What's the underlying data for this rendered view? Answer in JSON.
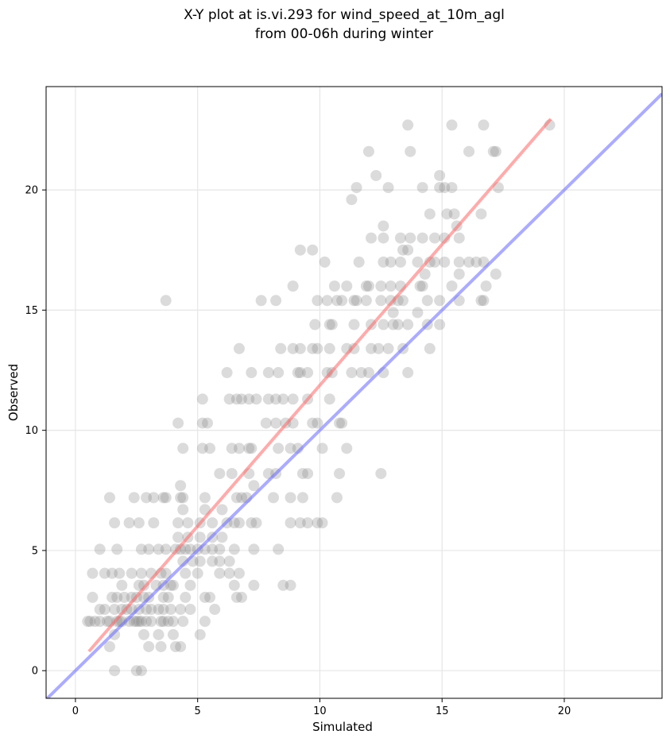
{
  "chart_data": {
    "type": "scatter",
    "title_line1": "X-Y plot at is.vi.293 for wind_speed_at_10m_agl",
    "title_line2": "from 00-06h during winter",
    "xlabel": "Simulated",
    "ylabel": "Observed",
    "xlim": [
      -1.2,
      24.0
    ],
    "ylim": [
      -1.15,
      24.3
    ],
    "xticks": [
      0,
      5,
      10,
      15,
      20
    ],
    "yticks": [
      0,
      5,
      10,
      15,
      20
    ],
    "grid": true,
    "colors": {
      "points": "#7f7f7f",
      "fit_line": "#ff6666",
      "identity_line": "#6666ff",
      "grid": "#e6e6e6"
    },
    "fit_line": {
      "x": [
        0.55,
        19.45
      ],
      "y": [
        0.8,
        22.95
      ]
    },
    "identity_line": {
      "x": [
        -1.2,
        24.0
      ],
      "y": [
        -1.2,
        24.0
      ]
    },
    "points": [
      [
        1.6,
        0.0
      ],
      [
        2.5,
        0.0
      ],
      [
        2.7,
        0.0
      ],
      [
        1.4,
        1.0
      ],
      [
        3.0,
        1.0
      ],
      [
        3.5,
        1.0
      ],
      [
        4.3,
        1.0
      ],
      [
        4.1,
        1.0
      ],
      [
        1.6,
        1.5
      ],
      [
        2.8,
        1.5
      ],
      [
        3.4,
        1.5
      ],
      [
        4.0,
        1.5
      ],
      [
        5.1,
        1.5
      ],
      [
        0.5,
        2.05
      ],
      [
        0.6,
        2.05
      ],
      [
        0.8,
        2.05
      ],
      [
        1.0,
        2.05
      ],
      [
        1.3,
        2.05
      ],
      [
        1.4,
        2.05
      ],
      [
        1.7,
        2.05
      ],
      [
        1.8,
        2.05
      ],
      [
        1.9,
        2.05
      ],
      [
        2.2,
        2.05
      ],
      [
        2.4,
        2.05
      ],
      [
        2.5,
        2.05
      ],
      [
        2.6,
        2.05
      ],
      [
        2.7,
        2.05
      ],
      [
        2.9,
        2.05
      ],
      [
        3.1,
        2.05
      ],
      [
        3.5,
        2.05
      ],
      [
        3.6,
        2.05
      ],
      [
        3.8,
        2.05
      ],
      [
        4.0,
        2.05
      ],
      [
        4.4,
        2.05
      ],
      [
        5.3,
        2.05
      ],
      [
        1.0,
        2.55
      ],
      [
        1.2,
        2.55
      ],
      [
        1.6,
        2.55
      ],
      [
        1.9,
        2.55
      ],
      [
        2.1,
        2.55
      ],
      [
        2.3,
        2.55
      ],
      [
        2.6,
        2.55
      ],
      [
        2.9,
        2.55
      ],
      [
        3.1,
        2.55
      ],
      [
        3.4,
        2.55
      ],
      [
        3.6,
        2.55
      ],
      [
        3.9,
        2.55
      ],
      [
        4.3,
        2.55
      ],
      [
        4.7,
        2.55
      ],
      [
        5.7,
        2.55
      ],
      [
        0.7,
        3.05
      ],
      [
        1.5,
        3.05
      ],
      [
        1.7,
        3.05
      ],
      [
        2.0,
        3.05
      ],
      [
        2.3,
        3.05
      ],
      [
        2.5,
        3.05
      ],
      [
        2.8,
        3.05
      ],
      [
        3.0,
        3.05
      ],
      [
        3.6,
        3.05
      ],
      [
        3.8,
        3.05
      ],
      [
        4.5,
        3.05
      ],
      [
        5.3,
        3.05
      ],
      [
        5.5,
        3.05
      ],
      [
        6.6,
        3.05
      ],
      [
        6.8,
        3.05
      ],
      [
        1.9,
        3.55
      ],
      [
        2.6,
        3.55
      ],
      [
        2.8,
        3.55
      ],
      [
        3.3,
        3.55
      ],
      [
        3.6,
        3.55
      ],
      [
        3.9,
        3.55
      ],
      [
        4.0,
        3.55
      ],
      [
        4.7,
        3.55
      ],
      [
        6.5,
        3.55
      ],
      [
        7.3,
        3.55
      ],
      [
        8.5,
        3.55
      ],
      [
        8.8,
        3.55
      ],
      [
        0.7,
        4.05
      ],
      [
        1.2,
        4.05
      ],
      [
        1.5,
        4.05
      ],
      [
        1.8,
        4.05
      ],
      [
        2.3,
        4.05
      ],
      [
        2.7,
        4.05
      ],
      [
        3.1,
        4.05
      ],
      [
        3.5,
        4.05
      ],
      [
        3.7,
        4.05
      ],
      [
        4.5,
        4.05
      ],
      [
        5.0,
        4.05
      ],
      [
        5.9,
        4.05
      ],
      [
        6.3,
        4.05
      ],
      [
        6.7,
        4.05
      ],
      [
        4.4,
        4.55
      ],
      [
        4.8,
        4.55
      ],
      [
        5.1,
        4.55
      ],
      [
        5.6,
        4.55
      ],
      [
        5.9,
        4.55
      ],
      [
        6.3,
        4.55
      ],
      [
        1.0,
        5.05
      ],
      [
        1.7,
        5.05
      ],
      [
        2.7,
        5.05
      ],
      [
        3.0,
        5.05
      ],
      [
        3.4,
        5.05
      ],
      [
        3.7,
        5.05
      ],
      [
        4.1,
        5.05
      ],
      [
        4.3,
        5.05
      ],
      [
        4.5,
        5.05
      ],
      [
        4.7,
        5.05
      ],
      [
        5.0,
        5.05
      ],
      [
        5.3,
        5.05
      ],
      [
        5.6,
        5.05
      ],
      [
        5.9,
        5.05
      ],
      [
        6.5,
        5.05
      ],
      [
        7.3,
        5.05
      ],
      [
        8.3,
        5.05
      ],
      [
        4.2,
        5.55
      ],
      [
        4.6,
        5.55
      ],
      [
        5.1,
        5.55
      ],
      [
        5.6,
        5.55
      ],
      [
        6.0,
        5.55
      ],
      [
        1.6,
        6.15
      ],
      [
        2.2,
        6.15
      ],
      [
        2.6,
        6.15
      ],
      [
        3.2,
        6.15
      ],
      [
        4.2,
        6.15
      ],
      [
        4.6,
        6.15
      ],
      [
        5.1,
        6.15
      ],
      [
        5.6,
        6.15
      ],
      [
        6.2,
        6.15
      ],
      [
        6.5,
        6.15
      ],
      [
        6.7,
        6.15
      ],
      [
        7.2,
        6.15
      ],
      [
        7.4,
        6.15
      ],
      [
        8.8,
        6.15
      ],
      [
        9.2,
        6.15
      ],
      [
        9.5,
        6.15
      ],
      [
        9.9,
        6.15
      ],
      [
        10.1,
        6.15
      ],
      [
        4.4,
        6.7
      ],
      [
        5.3,
        6.7
      ],
      [
        6.0,
        6.7
      ],
      [
        1.4,
        7.2
      ],
      [
        2.4,
        7.2
      ],
      [
        2.9,
        7.2
      ],
      [
        3.2,
        7.2
      ],
      [
        3.6,
        7.2
      ],
      [
        3.7,
        7.2
      ],
      [
        4.3,
        7.2
      ],
      [
        4.4,
        7.2
      ],
      [
        5.3,
        7.2
      ],
      [
        6.6,
        7.2
      ],
      [
        6.8,
        7.2
      ],
      [
        7.0,
        7.2
      ],
      [
        8.1,
        7.2
      ],
      [
        8.8,
        7.2
      ],
      [
        9.3,
        7.2
      ],
      [
        10.7,
        7.2
      ],
      [
        4.3,
        7.7
      ],
      [
        7.3,
        7.7
      ],
      [
        5.9,
        8.2
      ],
      [
        6.4,
        8.2
      ],
      [
        7.1,
        8.2
      ],
      [
        7.9,
        8.2
      ],
      [
        8.2,
        8.2
      ],
      [
        9.3,
        8.2
      ],
      [
        9.5,
        8.2
      ],
      [
        10.8,
        8.2
      ],
      [
        12.5,
        8.2
      ],
      [
        4.4,
        9.25
      ],
      [
        5.2,
        9.25
      ],
      [
        5.5,
        9.25
      ],
      [
        6.4,
        9.25
      ],
      [
        6.7,
        9.25
      ],
      [
        7.1,
        9.25
      ],
      [
        7.2,
        9.25
      ],
      [
        8.3,
        9.25
      ],
      [
        8.8,
        9.25
      ],
      [
        9.1,
        9.25
      ],
      [
        10.1,
        9.25
      ],
      [
        11.1,
        9.25
      ],
      [
        4.2,
        10.3
      ],
      [
        5.2,
        10.3
      ],
      [
        5.4,
        10.3
      ],
      [
        7.8,
        10.3
      ],
      [
        8.2,
        10.3
      ],
      [
        8.6,
        10.3
      ],
      [
        8.9,
        10.3
      ],
      [
        9.7,
        10.3
      ],
      [
        9.9,
        10.3
      ],
      [
        10.8,
        10.3
      ],
      [
        10.9,
        10.3
      ],
      [
        5.2,
        11.3
      ],
      [
        6.3,
        11.3
      ],
      [
        6.6,
        11.3
      ],
      [
        6.8,
        11.3
      ],
      [
        7.1,
        11.3
      ],
      [
        7.4,
        11.3
      ],
      [
        7.9,
        11.3
      ],
      [
        8.2,
        11.3
      ],
      [
        8.5,
        11.3
      ],
      [
        8.9,
        11.3
      ],
      [
        9.5,
        11.3
      ],
      [
        10.4,
        11.3
      ],
      [
        6.2,
        12.4
      ],
      [
        7.2,
        12.4
      ],
      [
        7.9,
        12.4
      ],
      [
        8.3,
        12.4
      ],
      [
        9.1,
        12.4
      ],
      [
        9.2,
        12.4
      ],
      [
        9.5,
        12.4
      ],
      [
        10.3,
        12.4
      ],
      [
        10.5,
        12.4
      ],
      [
        11.3,
        12.4
      ],
      [
        11.7,
        12.4
      ],
      [
        12.0,
        12.4
      ],
      [
        12.6,
        12.4
      ],
      [
        13.6,
        12.4
      ],
      [
        6.7,
        13.4
      ],
      [
        8.4,
        13.4
      ],
      [
        8.9,
        13.4
      ],
      [
        9.2,
        13.4
      ],
      [
        9.7,
        13.4
      ],
      [
        9.9,
        13.4
      ],
      [
        10.4,
        13.4
      ],
      [
        11.1,
        13.4
      ],
      [
        11.4,
        13.4
      ],
      [
        12.1,
        13.4
      ],
      [
        12.4,
        13.4
      ],
      [
        12.8,
        13.4
      ],
      [
        13.4,
        13.4
      ],
      [
        14.5,
        13.4
      ],
      [
        9.8,
        14.4
      ],
      [
        10.4,
        14.4
      ],
      [
        10.5,
        14.4
      ],
      [
        11.4,
        14.4
      ],
      [
        12.1,
        14.4
      ],
      [
        12.6,
        14.4
      ],
      [
        13.0,
        14.4
      ],
      [
        13.2,
        14.4
      ],
      [
        13.6,
        14.4
      ],
      [
        14.4,
        14.4
      ],
      [
        14.9,
        14.4
      ],
      [
        13.0,
        14.9
      ],
      [
        14.0,
        14.9
      ],
      [
        3.7,
        15.4
      ],
      [
        7.6,
        15.4
      ],
      [
        8.2,
        15.4
      ],
      [
        9.9,
        15.4
      ],
      [
        10.3,
        15.4
      ],
      [
        10.7,
        15.4
      ],
      [
        10.9,
        15.4
      ],
      [
        11.4,
        15.4
      ],
      [
        11.5,
        15.4
      ],
      [
        11.9,
        15.4
      ],
      [
        12.5,
        15.4
      ],
      [
        12.9,
        15.4
      ],
      [
        13.2,
        15.4
      ],
      [
        13.4,
        15.4
      ],
      [
        14.4,
        15.4
      ],
      [
        14.9,
        15.4
      ],
      [
        15.7,
        15.4
      ],
      [
        16.6,
        15.4
      ],
      [
        16.7,
        15.4
      ],
      [
        8.9,
        16.0
      ],
      [
        10.6,
        16.0
      ],
      [
        11.1,
        16.0
      ],
      [
        11.9,
        16.0
      ],
      [
        12.0,
        16.0
      ],
      [
        12.5,
        16.0
      ],
      [
        12.9,
        16.0
      ],
      [
        13.3,
        16.0
      ],
      [
        14.1,
        16.0
      ],
      [
        14.2,
        16.0
      ],
      [
        15.4,
        16.0
      ],
      [
        16.8,
        16.0
      ],
      [
        14.3,
        16.5
      ],
      [
        15.7,
        16.5
      ],
      [
        17.2,
        16.5
      ],
      [
        10.2,
        17.0
      ],
      [
        11.6,
        17.0
      ],
      [
        12.6,
        17.0
      ],
      [
        12.9,
        17.0
      ],
      [
        13.3,
        17.0
      ],
      [
        14.0,
        17.0
      ],
      [
        14.5,
        17.0
      ],
      [
        14.7,
        17.0
      ],
      [
        15.1,
        17.0
      ],
      [
        15.7,
        17.0
      ],
      [
        16.1,
        17.0
      ],
      [
        16.4,
        17.0
      ],
      [
        16.7,
        17.0
      ],
      [
        9.2,
        17.5
      ],
      [
        9.7,
        17.5
      ],
      [
        13.6,
        17.5
      ],
      [
        13.4,
        17.5
      ],
      [
        12.1,
        18.0
      ],
      [
        12.6,
        18.0
      ],
      [
        13.3,
        18.0
      ],
      [
        13.7,
        18.0
      ],
      [
        14.2,
        18.0
      ],
      [
        14.7,
        18.0
      ],
      [
        15.1,
        18.0
      ],
      [
        15.7,
        18.0
      ],
      [
        12.6,
        18.5
      ],
      [
        15.6,
        18.5
      ],
      [
        14.5,
        19.0
      ],
      [
        15.2,
        19.0
      ],
      [
        15.5,
        19.0
      ],
      [
        16.6,
        19.0
      ],
      [
        11.3,
        19.6
      ],
      [
        11.5,
        20.1
      ],
      [
        12.8,
        20.1
      ],
      [
        14.2,
        20.1
      ],
      [
        14.9,
        20.1
      ],
      [
        15.1,
        20.1
      ],
      [
        15.4,
        20.1
      ],
      [
        17.3,
        20.1
      ],
      [
        12.3,
        20.6
      ],
      [
        14.9,
        20.6
      ],
      [
        12.0,
        21.6
      ],
      [
        13.7,
        21.6
      ],
      [
        16.1,
        21.6
      ],
      [
        17.1,
        21.6
      ],
      [
        17.2,
        21.6
      ],
      [
        13.6,
        22.7
      ],
      [
        15.4,
        22.7
      ],
      [
        16.7,
        22.7
      ],
      [
        19.4,
        22.7
      ]
    ]
  }
}
